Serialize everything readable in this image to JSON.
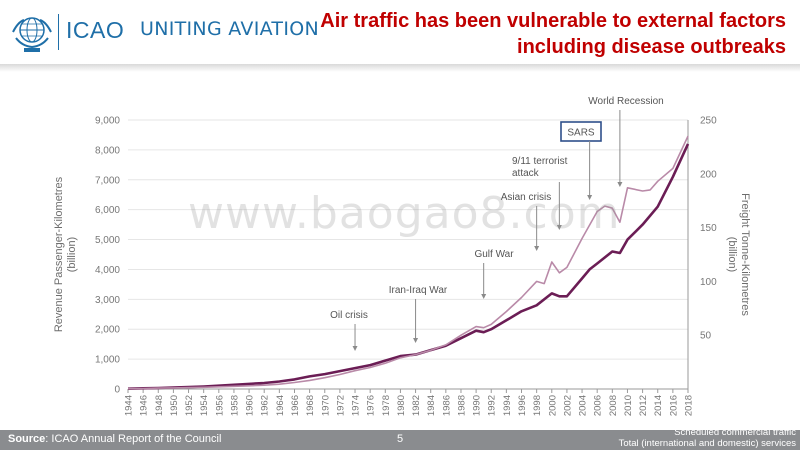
{
  "header": {
    "org": "ICAO",
    "tagline": "UNITING AVIATION",
    "title_line1": "Air traffic has been vulnerable to external factors",
    "title_line2": "including disease outbreaks"
  },
  "colors": {
    "title": "#c00000",
    "brand": "#1f6fa8",
    "rpk_line": "#6b1d55",
    "ftk_line": "#b98aa8",
    "footer": "#8a8c8f"
  },
  "watermark": "www.baogao8.com",
  "footer": {
    "source_label": "Source",
    "source_text": ": ICAO Annual Report of the Council",
    "page_number": "5",
    "note_line1": "Scheduled commercial traffic",
    "note_line2": "Total (international and domestic) services"
  },
  "chart_data": {
    "type": "line",
    "title": "",
    "xlabel": "",
    "ylabel_left": "Revenue Passenger-Kilometres",
    "ylabel_left_unit": "(billion)",
    "ylabel_right": "Freight Tonne-Kilometres",
    "ylabel_right_unit": "(billion)",
    "ylim_left": [
      0,
      9000
    ],
    "ylim_right": [
      0,
      250
    ],
    "yticks_left": [
      "0",
      "1,000",
      "2,000",
      "3,000",
      "4,000",
      "5,000",
      "6,000",
      "7,000",
      "8,000",
      "9,000"
    ],
    "yticks_right": [
      "50",
      "100",
      "150",
      "200",
      "250"
    ],
    "x_ticks": [
      "1944",
      "1946",
      "1948",
      "1950",
      "1952",
      "1954",
      "1956",
      "1958",
      "1960",
      "1962",
      "1964",
      "1966",
      "1968",
      "1970",
      "1972",
      "1974",
      "1976",
      "1978",
      "1980",
      "1982",
      "1984",
      "1986",
      "1988",
      "1990",
      "1992",
      "1994",
      "1996",
      "1998",
      "2000",
      "2002",
      "2004",
      "2006",
      "2008",
      "2010",
      "2012",
      "2014",
      "2016",
      "2018"
    ],
    "grid": true,
    "series": [
      {
        "name": "Revenue Passenger-Kilometres",
        "axis": "left",
        "x": [
          1944,
          1946,
          1948,
          1950,
          1952,
          1954,
          1956,
          1958,
          1960,
          1962,
          1964,
          1966,
          1968,
          1970,
          1972,
          1974,
          1976,
          1978,
          1980,
          1982,
          1984,
          1986,
          1988,
          1990,
          1991,
          1992,
          1994,
          1996,
          1998,
          2000,
          2001,
          2002,
          2004,
          2005,
          2006,
          2008,
          2009,
          2010,
          2012,
          2014,
          2016,
          2018
        ],
        "values": [
          10,
          25,
          35,
          50,
          65,
          85,
          110,
          140,
          170,
          200,
          250,
          320,
          420,
          500,
          600,
          700,
          800,
          950,
          1100,
          1150,
          1300,
          1450,
          1700,
          1950,
          1900,
          2000,
          2300,
          2600,
          2800,
          3200,
          3100,
          3100,
          3700,
          4000,
          4200,
          4600,
          4550,
          5000,
          5500,
          6100,
          7100,
          8200
        ]
      },
      {
        "name": "Freight Tonne-Kilometres",
        "axis": "right",
        "x": [
          1944,
          1946,
          1948,
          1950,
          1952,
          1954,
          1956,
          1958,
          1960,
          1962,
          1964,
          1966,
          1968,
          1970,
          1972,
          1974,
          1976,
          1978,
          1980,
          1982,
          1984,
          1986,
          1988,
          1990,
          1991,
          1992,
          1994,
          1996,
          1998,
          1999,
          2000,
          2001,
          2002,
          2004,
          2006,
          2007,
          2008,
          2009,
          2010,
          2012,
          2013,
          2014,
          2016,
          2018
        ],
        "values": [
          0.3,
          0.5,
          0.8,
          1,
          1.3,
          1.6,
          2,
          2.5,
          3,
          3.5,
          4.5,
          6,
          8,
          10.5,
          13.5,
          17,
          20,
          24,
          29,
          32,
          36,
          41,
          50,
          58,
          57,
          60,
          72,
          85,
          100,
          98,
          118,
          108,
          113,
          140,
          165,
          170,
          168,
          155,
          187,
          184,
          185,
          193,
          205,
          235
        ]
      }
    ],
    "annotations": [
      {
        "text": "Oil crisis",
        "year": 1974
      },
      {
        "text": "Iran-Iraq War",
        "year": 1982
      },
      {
        "text": "Gulf War",
        "year": 1991
      },
      {
        "text": "Asian crisis",
        "year": 1998
      },
      {
        "text_line1": "9/11 terrorist",
        "text_line2": "attack",
        "year": 2001
      },
      {
        "text": "SARS",
        "year": 2005
      },
      {
        "text": "World Recession",
        "year": 2009
      }
    ]
  }
}
